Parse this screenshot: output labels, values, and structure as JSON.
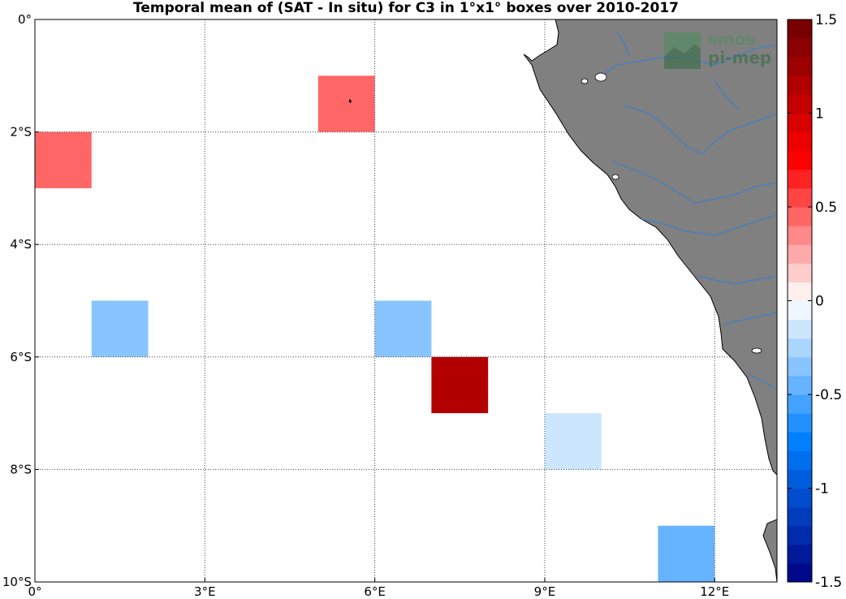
{
  "title": "Temporal mean of (SAT - In situ) for C3 in 1°x1° boxes over 2010-2017",
  "logo": {
    "line1": "smos",
    "line2": "pi-mep"
  },
  "colors": {
    "land": "#808080",
    "rivers": "#3d7fc8",
    "coast": "#000000",
    "grid": "#404040"
  },
  "chart_data": {
    "type": "heatmap",
    "title": "Temporal mean of (SAT - In situ) for C3 in 1°x1° boxes over 2010-2017",
    "lon_range": [
      0,
      13.1
    ],
    "lat_range": [
      -10,
      0
    ],
    "x_ticks": [
      {
        "value": 0,
        "label": "0°"
      },
      {
        "value": 3,
        "label": "3°E"
      },
      {
        "value": 6,
        "label": "6°E"
      },
      {
        "value": 9,
        "label": "9°E"
      },
      {
        "value": 12,
        "label": "12°E"
      }
    ],
    "y_ticks": [
      {
        "value": 0,
        "label": "0°"
      },
      {
        "value": -2,
        "label": "2°S"
      },
      {
        "value": -4,
        "label": "4°S"
      },
      {
        "value": -6,
        "label": "6°S"
      },
      {
        "value": -8,
        "label": "8°S"
      },
      {
        "value": -10,
        "label": "10°S"
      }
    ],
    "boxes": [
      {
        "lon": 0,
        "lat": -3,
        "value": 0.45
      },
      {
        "lon": 5,
        "lat": -2,
        "value": 0.45
      },
      {
        "lon": 1,
        "lat": -6,
        "value": -0.35
      },
      {
        "lon": 6,
        "lat": -6,
        "value": -0.35
      },
      {
        "lon": 7,
        "lat": -7,
        "value": 1.15
      },
      {
        "lon": 9,
        "lat": -8,
        "value": -0.1
      },
      {
        "lon": 11,
        "lat": -10,
        "value": -0.45
      }
    ],
    "colorbar": {
      "range": [
        -1.5,
        1.5
      ],
      "step": 0.1,
      "ticks": [
        {
          "value": 1.5,
          "label": "1.5"
        },
        {
          "value": 1,
          "label": "1"
        },
        {
          "value": 0.5,
          "label": "0.5"
        },
        {
          "value": 0,
          "label": "0"
        },
        {
          "value": -0.5,
          "label": "-0.5"
        },
        {
          "value": -1,
          "label": "-1"
        },
        {
          "value": -1.5,
          "label": "-1.5"
        }
      ]
    }
  }
}
